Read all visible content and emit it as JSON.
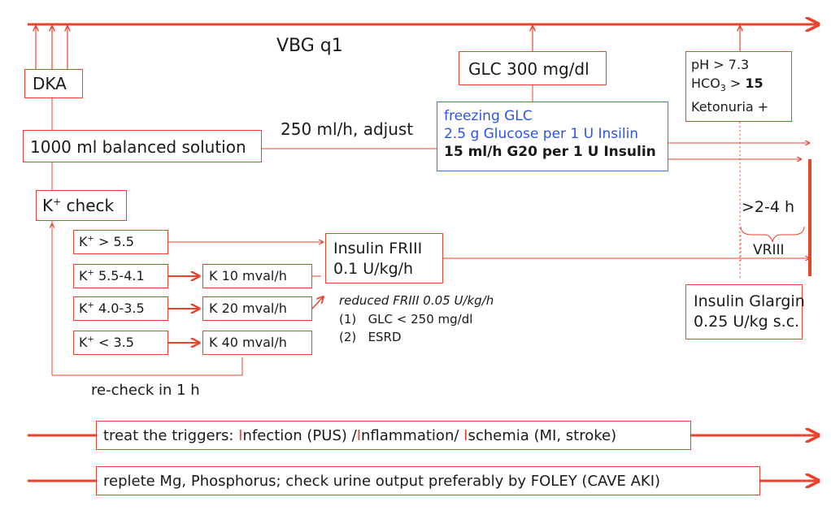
{
  "diagram": {
    "title": "VBG q1",
    "dka": "DKA",
    "fluid_box": "1000 ml balanced solution",
    "fluid_rate": "250 ml/h, adjust",
    "k_check": {
      "k": "K",
      "sup": "+",
      "rest": " check"
    },
    "glc_box": "GLC 300 mg/dl",
    "freezing": {
      "line1": "freezing GLC",
      "line2": "2.5 g Glucose per 1 U Insilin",
      "line3": "15 ml/h G20 per 1 U Insulin"
    },
    "resolution": {
      "ph": "pH > 7.3",
      "hco3_prefix": "HCO",
      "hco3_sub": "3",
      "hco3_op": " > ",
      "hco3_val": "15",
      "keto": "Ketonuria +"
    },
    "k_levels": [
      {
        "sup": "+",
        "text": " > 5.5"
      },
      {
        "sup": "+",
        "text": " 5.5-4.1"
      },
      {
        "sup": "+",
        "text": " 4.0-3.5"
      },
      {
        "sup": "+",
        "text": " < 3.5"
      }
    ],
    "k_letter": "K",
    "k_doses": [
      "K 10 mval/h",
      "K 20 mval/h",
      "K 40 mval/h"
    ],
    "recheck": "re-check in 1 h",
    "friii": {
      "line1": "Insulin FRIII",
      "line2": "0.1 U/kg/h"
    },
    "reduced": {
      "title": "reduced FRIII 0.05 U/kg/h",
      "items": [
        {
          "num": "(1)",
          "text": "GLC < 250 mg/dl"
        },
        {
          "num": "(2)",
          "text": "ESRD"
        }
      ]
    },
    "duration": ">2-4 h",
    "vriii": "VRIII",
    "glargin": {
      "line1": "Insulin Glargin",
      "line2": "0.25 U/kg s.c."
    },
    "triggers": {
      "pre": "treat the triggers: ",
      "i1": "I",
      "t1": "nfection (PUS) /",
      "i2": "I",
      "t2": "nflammation/ ",
      "i3": "I",
      "t3": "schemia (MI, stroke)"
    },
    "replete": "replete Mg, Phosphorus; check urine output preferably by FOLEY (CAVE AKI)"
  },
  "colors": {
    "accent": "#e8432e",
    "blue": "#2f54e0",
    "text": "#1a1a1a"
  }
}
